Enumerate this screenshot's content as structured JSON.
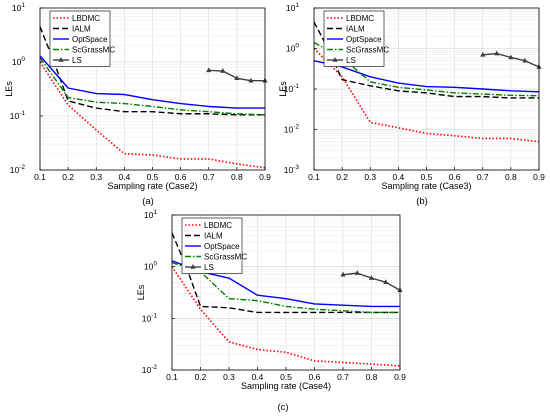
{
  "chart_data": [
    {
      "type": "line",
      "caption": "(a)",
      "xlabel": "Sampling rate (Case2)",
      "ylabel": "LEs",
      "xlim": [
        0.1,
        0.9
      ],
      "ylim": [
        0.01,
        10
      ],
      "yscale": "log",
      "grid": true,
      "legend_position": "top-left",
      "x_ticks": [
        "0.1",
        "0.2",
        "0.3",
        "0.4",
        "0.5",
        "0.6",
        "0.7",
        "0.8",
        "0.9"
      ],
      "y_ticks": [
        {
          "base": "10",
          "exp": "-2",
          "v": 0.01
        },
        {
          "base": "10",
          "exp": "-1",
          "v": 0.1
        },
        {
          "base": "10",
          "exp": "0",
          "v": 1
        },
        {
          "base": "10",
          "exp": "1",
          "v": 10
        }
      ],
      "series": [
        {
          "name": "LBDMC",
          "color": "#ff0000",
          "style": "dotted",
          "marker": "",
          "x": [
            0.1,
            0.2,
            0.3,
            0.4,
            0.5,
            0.6,
            0.7,
            0.8,
            0.9
          ],
          "y": [
            1.0,
            0.16,
            0.055,
            0.02,
            0.019,
            0.016,
            0.016,
            0.013,
            0.011
          ]
        },
        {
          "name": "IALM",
          "color": "#000000",
          "style": "dashed",
          "marker": "",
          "x": [
            0.1,
            0.15,
            0.2,
            0.3,
            0.4,
            0.5,
            0.6,
            0.7,
            0.8,
            0.9
          ],
          "y": [
            4.5,
            1.0,
            0.19,
            0.14,
            0.12,
            0.12,
            0.11,
            0.11,
            0.105,
            0.105
          ]
        },
        {
          "name": "OptSpace",
          "color": "#0000ff",
          "style": "solid",
          "marker": "",
          "x": [
            0.1,
            0.2,
            0.3,
            0.4,
            0.5,
            0.6,
            0.7,
            0.8,
            0.9
          ],
          "y": [
            1.3,
            0.33,
            0.26,
            0.25,
            0.2,
            0.17,
            0.15,
            0.14,
            0.14
          ]
        },
        {
          "name": "ScGrassMC",
          "color": "#008000",
          "style": "dashdot",
          "marker": "",
          "x": [
            0.1,
            0.2,
            0.3,
            0.4,
            0.5,
            0.6,
            0.7,
            0.8,
            0.9
          ],
          "y": [
            1.2,
            0.22,
            0.18,
            0.17,
            0.15,
            0.13,
            0.12,
            0.11,
            0.105
          ]
        },
        {
          "name": "LS",
          "color": "#404040",
          "style": "solid",
          "marker": "triangle",
          "x": [
            0.7,
            0.75,
            0.8,
            0.85,
            0.9
          ],
          "y": [
            0.7,
            0.68,
            0.5,
            0.45,
            0.45
          ]
        }
      ]
    },
    {
      "type": "line",
      "caption": "(b)",
      "xlabel": "Sampling rate (Case3)",
      "ylabel": "LEs",
      "xlim": [
        0.1,
        0.9
      ],
      "ylim": [
        0.001,
        10
      ],
      "yscale": "log",
      "grid": true,
      "legend_position": "top-left",
      "x_ticks": [
        "0.1",
        "0.2",
        "0.3",
        "0.4",
        "0.5",
        "0.6",
        "0.7",
        "0.8",
        "0.9"
      ],
      "y_ticks": [
        {
          "base": "10",
          "exp": "-3",
          "v": 0.001
        },
        {
          "base": "10",
          "exp": "-2",
          "v": 0.01
        },
        {
          "base": "10",
          "exp": "-1",
          "v": 0.1
        },
        {
          "base": "10",
          "exp": "0",
          "v": 1
        },
        {
          "base": "10",
          "exp": "1",
          "v": 10
        }
      ],
      "series": [
        {
          "name": "LBDMC",
          "color": "#ff0000",
          "style": "dotted",
          "marker": "",
          "x": [
            0.1,
            0.2,
            0.3,
            0.4,
            0.5,
            0.6,
            0.7,
            0.8,
            0.9
          ],
          "y": [
            1.0,
            0.2,
            0.015,
            0.011,
            0.008,
            0.007,
            0.006,
            0.006,
            0.005
          ]
        },
        {
          "name": "IALM",
          "color": "#000000",
          "style": "dashed",
          "marker": "",
          "x": [
            0.1,
            0.15,
            0.2,
            0.3,
            0.4,
            0.5,
            0.6,
            0.7,
            0.8,
            0.9
          ],
          "y": [
            4.5,
            1.0,
            0.17,
            0.12,
            0.09,
            0.08,
            0.065,
            0.065,
            0.06,
            0.06
          ]
        },
        {
          "name": "OptSpace",
          "color": "#0000ff",
          "style": "solid",
          "marker": "",
          "x": [
            0.1,
            0.2,
            0.3,
            0.4,
            0.5,
            0.6,
            0.7,
            0.8,
            0.9
          ],
          "y": [
            0.5,
            0.35,
            0.2,
            0.14,
            0.115,
            0.11,
            0.1,
            0.09,
            0.085
          ]
        },
        {
          "name": "ScGrassMC",
          "color": "#008000",
          "style": "dashdot",
          "marker": "",
          "x": [
            0.1,
            0.2,
            0.3,
            0.4,
            0.5,
            0.6,
            0.7,
            0.8,
            0.9
          ],
          "y": [
            1.4,
            0.6,
            0.15,
            0.11,
            0.095,
            0.08,
            0.075,
            0.07,
            0.068
          ]
        },
        {
          "name": "LS",
          "color": "#404040",
          "style": "solid",
          "marker": "triangle",
          "x": [
            0.7,
            0.75,
            0.8,
            0.85,
            0.9
          ],
          "y": [
            0.7,
            0.75,
            0.6,
            0.5,
            0.35
          ]
        }
      ]
    },
    {
      "type": "line",
      "caption": "(c)",
      "xlabel": "Sampling rate (Case4)",
      "ylabel": "LEs",
      "xlim": [
        0.1,
        0.9
      ],
      "ylim": [
        0.01,
        10
      ],
      "yscale": "log",
      "grid": true,
      "legend_position": "top-left",
      "x_ticks": [
        "0.1",
        "0.2",
        "0.3",
        "0.4",
        "0.5",
        "0.6",
        "0.7",
        "0.8",
        "0.9"
      ],
      "y_ticks": [
        {
          "base": "10",
          "exp": "-2",
          "v": 0.01
        },
        {
          "base": "10",
          "exp": "-1",
          "v": 0.1
        },
        {
          "base": "10",
          "exp": "0",
          "v": 1
        },
        {
          "base": "10",
          "exp": "1",
          "v": 10
        }
      ],
      "series": [
        {
          "name": "LBDMC",
          "color": "#ff0000",
          "style": "dotted",
          "marker": "",
          "x": [
            0.1,
            0.2,
            0.3,
            0.4,
            0.5,
            0.6,
            0.7,
            0.8,
            0.9
          ],
          "y": [
            1.0,
            0.15,
            0.035,
            0.025,
            0.022,
            0.015,
            0.014,
            0.013,
            0.012
          ]
        },
        {
          "name": "IALM",
          "color": "#000000",
          "style": "dashed",
          "marker": "",
          "x": [
            0.1,
            0.15,
            0.2,
            0.3,
            0.4,
            0.5,
            0.6,
            0.7,
            0.8,
            0.9
          ],
          "y": [
            4.5,
            1.0,
            0.17,
            0.16,
            0.13,
            0.13,
            0.13,
            0.13,
            0.13,
            0.13
          ]
        },
        {
          "name": "OptSpace",
          "color": "#0000ff",
          "style": "solid",
          "marker": "",
          "x": [
            0.1,
            0.2,
            0.3,
            0.4,
            0.5,
            0.6,
            0.7,
            0.8,
            0.9
          ],
          "y": [
            1.3,
            0.8,
            0.6,
            0.28,
            0.24,
            0.19,
            0.18,
            0.17,
            0.17
          ]
        },
        {
          "name": "ScGrassMC",
          "color": "#008000",
          "style": "dashdot",
          "marker": "",
          "x": [
            0.1,
            0.2,
            0.3,
            0.4,
            0.5,
            0.6,
            0.7,
            0.8,
            0.9
          ],
          "y": [
            1.2,
            0.8,
            0.24,
            0.22,
            0.17,
            0.15,
            0.14,
            0.13,
            0.13
          ]
        },
        {
          "name": "LS",
          "color": "#404040",
          "style": "solid",
          "marker": "triangle",
          "x": [
            0.7,
            0.75,
            0.8,
            0.85,
            0.9
          ],
          "y": [
            0.7,
            0.75,
            0.6,
            0.5,
            0.35
          ]
        }
      ]
    }
  ]
}
